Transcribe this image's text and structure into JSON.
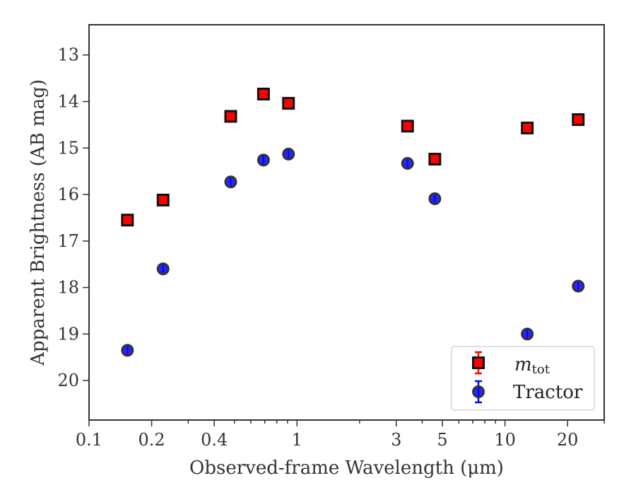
{
  "chart_data": {
    "type": "scatter",
    "xlabel": "Observed-frame Wavelength (μm)",
    "ylabel": "Apparent Brightness (AB mag)",
    "xscale": "log",
    "xlim": [
      0.1,
      30
    ],
    "ylim": [
      20.85,
      12.35
    ],
    "y_inverted": true,
    "grid": false,
    "legend_position": "lower-right",
    "x_major_ticks": [
      0.1,
      0.2,
      0.4,
      1,
      3,
      5,
      10,
      20
    ],
    "x_tick_labels": [
      "0.1",
      "0.2",
      "0.4",
      "1",
      "3",
      "5",
      "10",
      "20"
    ],
    "y_ticks": [
      13,
      14,
      15,
      16,
      17,
      18,
      19,
      20
    ],
    "y_tick_labels": [
      "13",
      "14",
      "15",
      "16",
      "17",
      "18",
      "19",
      "20"
    ],
    "series": [
      {
        "name": "m",
        "name_subscript": "tot",
        "marker": "square",
        "color": "#ff0000",
        "edge_color": "#111111",
        "error_color": "#ff0000",
        "x": [
          0.153,
          0.227,
          0.48,
          0.69,
          0.91,
          3.4,
          4.6,
          12.8,
          22.5
        ],
        "y": [
          16.55,
          16.12,
          14.32,
          13.84,
          14.04,
          14.53,
          15.24,
          14.57,
          14.39
        ]
      },
      {
        "name": "Tractor",
        "marker": "circle",
        "color": "#0000ff",
        "edge_color": "#333333",
        "error_color": "#0000ff",
        "x": [
          0.153,
          0.227,
          0.48,
          0.69,
          0.91,
          3.4,
          4.6,
          12.8,
          22.5
        ],
        "y": [
          19.35,
          17.6,
          15.73,
          15.26,
          15.13,
          15.33,
          16.09,
          19.0,
          17.97
        ]
      }
    ]
  }
}
